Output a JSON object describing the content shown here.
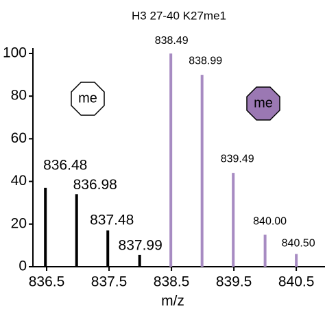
{
  "chart_data": {
    "type": "stick",
    "title": "H3 27-40 K27me1",
    "x_label": "m/z",
    "series": [
      {
        "color": "#000000",
        "x": [
          836.48,
          836.98,
          837.48,
          837.99
        ],
        "values": [
          37,
          34,
          17,
          5.5
        ]
      },
      {
        "color": "#a78bc2",
        "x": [
          838.49,
          838.99,
          839.49,
          {
            "value": 840,
            "label": "840.00"
          },
          {
            "value": 840.5,
            "label": "840.50"
          }
        ],
        "values": [
          100,
          90,
          44,
          15,
          6
        ]
      }
    ],
    "annotations": [
      {
        "text": "me",
        "fill": "#ffffff"
      },
      {
        "text": "me",
        "fill": "#9b78b3"
      }
    ],
    "xlim": [
      836.28,
      840.96
    ],
    "xticks": [
      836.5,
      837.5,
      838.5,
      839.5,
      840.5
    ],
    "ylim": [
      0,
      100
    ],
    "yticks": [
      0,
      20,
      40,
      60,
      80,
      100
    ]
  }
}
